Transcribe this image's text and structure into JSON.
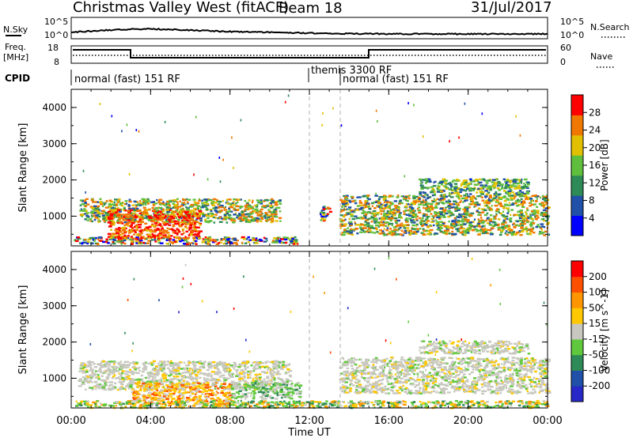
{
  "header": {
    "site": "Christmas Valley West (fitACF)",
    "beam": "Beam 18",
    "date": "31/Jul/2017"
  },
  "noise_panel": {
    "left_label": "N.Sky",
    "right_label": "N.Search",
    "tick_top": "10^5",
    "tick_bottom": "10^0"
  },
  "freq_panel": {
    "left_label_1": "Freq.",
    "left_label_2": "[MHz]",
    "tick_top_left": "18",
    "tick_bottom_left": "8",
    "tick_top_right": "60",
    "tick_bottom_right": "0",
    "right_label": "Nave"
  },
  "cpid": {
    "label": "CPID",
    "segments": [
      "normal (fast) 151 RF",
      "themis 3300 RF",
      "normal (fast) 151 RF"
    ]
  },
  "x_axis": {
    "label": "Time UT",
    "ticks": [
      "00:00",
      "04:00",
      "08:00",
      "12:00",
      "16:00",
      "20:00",
      "00:00"
    ]
  },
  "chart_data": [
    {
      "type": "heatmap",
      "name": "power",
      "ylabel": "Slant Range [km]",
      "yticks": [
        "1000",
        "2000",
        "3000",
        "4000"
      ],
      "xlim": [
        0,
        24
      ],
      "ylim": [
        180,
        4500
      ],
      "colorbar_label": "Power [dB]",
      "colorbar_ticks": [
        "28",
        "24",
        "20",
        "16",
        "12",
        "8",
        "4"
      ],
      "colors": [
        "#0000ff",
        "#2050a8",
        "#2e8b57",
        "#5fbf3c",
        "#e0c000",
        "#f07800",
        "#ff0000"
      ],
      "regions": [
        {
          "t0": 0.1,
          "t1": 11.5,
          "r0": 250,
          "r1": 450,
          "value": "mixed"
        },
        {
          "t0": 0.4,
          "t1": 10.5,
          "r0": 850,
          "r1": 1500,
          "value": "green-orange"
        },
        {
          "t0": 1.8,
          "t1": 6.5,
          "r0": 400,
          "r1": 1200,
          "value": "red-orange"
        },
        {
          "t0": 12.5,
          "t1": 13.0,
          "r0": 900,
          "r1": 1300,
          "value": "mixed"
        },
        {
          "t0": 13.5,
          "t1": 24.0,
          "r0": 500,
          "r1": 1600,
          "value": "green-orange"
        },
        {
          "t0": 17.5,
          "t1": 23.0,
          "r0": 1600,
          "r1": 2050,
          "value": "green"
        }
      ]
    },
    {
      "type": "heatmap",
      "name": "velocity",
      "ylabel": "Slant Range [km]",
      "yticks": [
        "1000",
        "2000",
        "3000",
        "4000"
      ],
      "xlim": [
        0,
        24
      ],
      "ylim": [
        180,
        4500
      ],
      "colorbar_label": "Velocity [m s^-1]",
      "colorbar_ticks": [
        "200",
        "100",
        "50",
        "15",
        "-15",
        "-50",
        "-100",
        "-200"
      ],
      "colors": [
        "#ff0000",
        "#ff5000",
        "#ff9600",
        "#ffc800",
        "#c8c8c0",
        "#5fc83c",
        "#2e8b57",
        "#2050a8",
        "#2828c8"
      ],
      "regions": [
        {
          "t0": 0.3,
          "t1": 11.0,
          "r0": 700,
          "r1": 1500,
          "value": "grey"
        },
        {
          "t0": 3.0,
          "t1": 8.0,
          "r0": 300,
          "r1": 900,
          "value": "orange"
        },
        {
          "t0": 8.0,
          "t1": 11.5,
          "r0": 450,
          "r1": 900,
          "value": "green"
        },
        {
          "t0": 0.2,
          "t1": 24.0,
          "r0": 200,
          "r1": 400,
          "value": "green-orange"
        },
        {
          "t0": 13.5,
          "t1": 24.0,
          "r0": 600,
          "r1": 1600,
          "value": "grey"
        },
        {
          "t0": 17.5,
          "t1": 23.0,
          "r0": 1700,
          "r1": 2050,
          "value": "grey"
        }
      ]
    }
  ]
}
